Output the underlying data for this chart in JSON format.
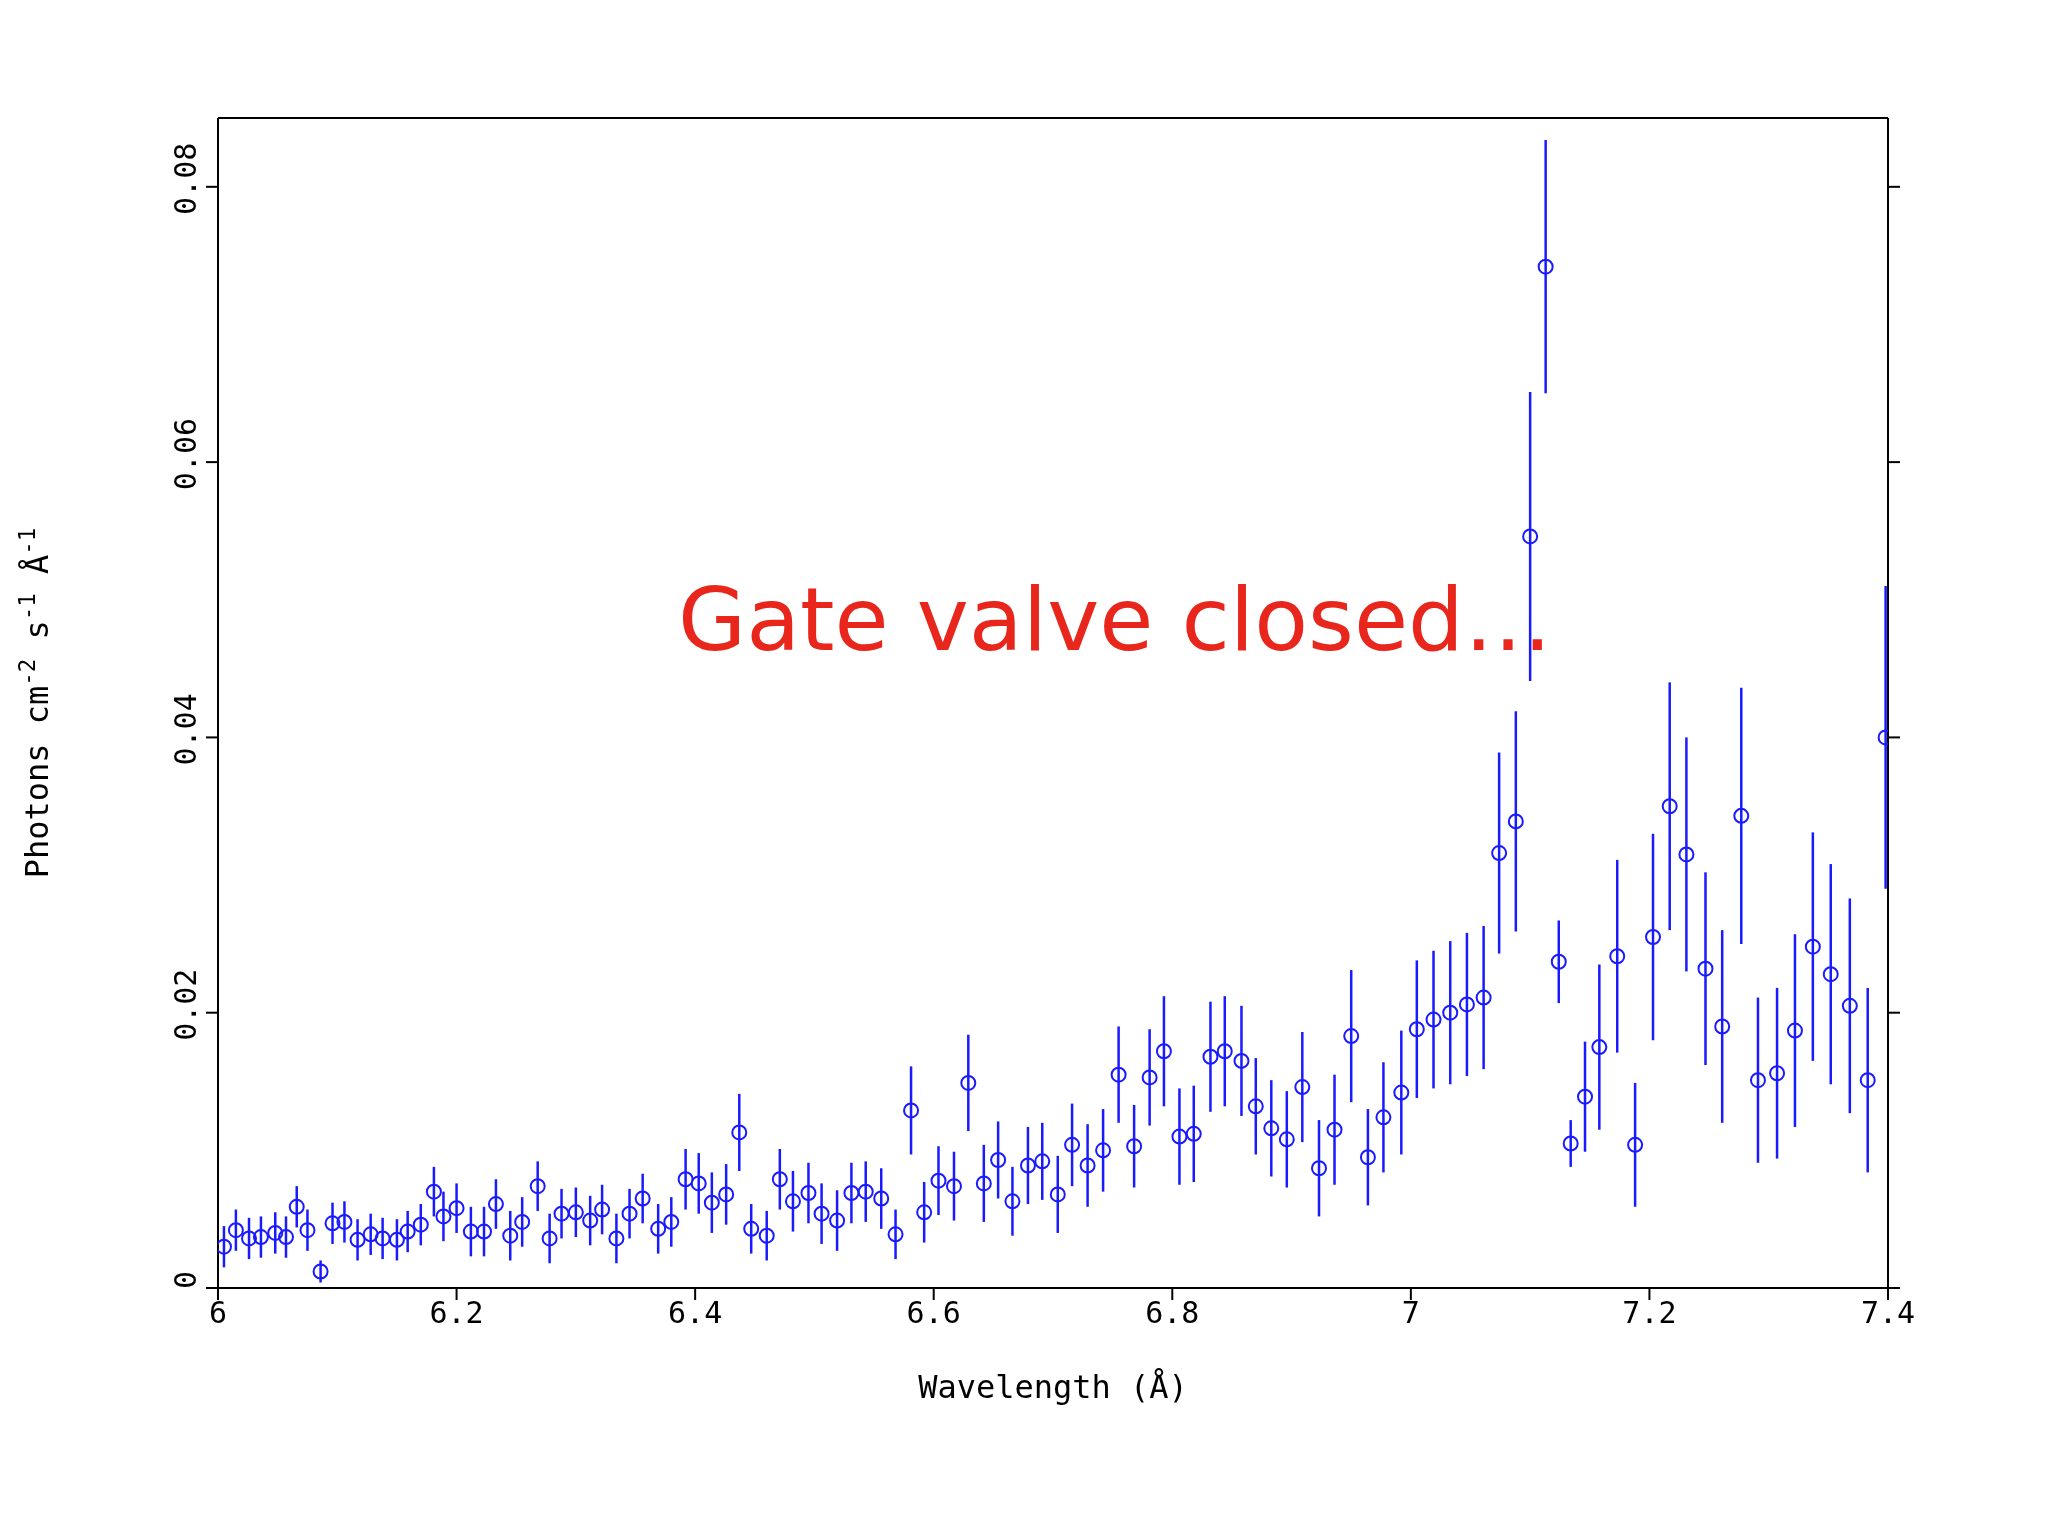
{
  "chart_data": {
    "type": "scatter",
    "xlabel": "Wavelength (Å)",
    "ylabel": "Photons cm$^{-2}$ s$^{-1}$ Å$^{-1}$",
    "annotations": [
      "Gate valve closed…"
    ],
    "xlim": [
      6,
      7.4
    ],
    "xticks": [
      6,
      6.2,
      6.4,
      6.6,
      6.8,
      7,
      7.2,
      7.4
    ],
    "ylim": [
      0,
      0.085
    ],
    "yticks": [
      0,
      0.02,
      0.04,
      0.06,
      0.08
    ],
    "grid": false,
    "marker": "circle",
    "legend": false,
    "series": [
      {
        "color": "#1a1aff",
        "x": [
          6.005,
          6.015,
          6.026,
          6.036,
          6.048,
          6.057,
          6.066,
          6.075,
          6.086,
          6.096,
          6.106,
          6.117,
          6.128,
          6.138,
          6.15,
          6.159,
          6.17,
          6.181,
          6.189,
          6.2,
          6.212,
          6.223,
          6.233,
          6.245,
          6.255,
          6.268,
          6.278,
          6.288,
          6.3,
          6.312,
          6.322,
          6.334,
          6.345,
          6.356,
          6.369,
          6.38,
          6.392,
          6.403,
          6.414,
          6.426,
          6.437,
          6.447,
          6.46,
          6.471,
          6.482,
          6.495,
          6.506,
          6.519,
          6.531,
          6.543,
          6.556,
          6.568,
          6.581,
          6.592,
          6.604,
          6.617,
          6.629,
          6.642,
          6.654,
          6.666,
          6.679,
          6.691,
          6.704,
          6.716,
          6.729,
          6.742,
          6.755,
          6.768,
          6.781,
          6.793,
          6.806,
          6.818,
          6.832,
          6.844,
          6.858,
          6.87,
          6.883,
          6.896,
          6.909,
          6.923,
          6.936,
          6.95,
          6.964,
          6.977,
          6.992,
          7.005,
          7.019,
          7.033,
          7.047,
          7.061,
          7.074,
          7.088,
          7.1,
          7.113,
          7.124,
          7.134,
          7.146,
          7.158,
          7.173,
          7.188,
          7.203,
          7.217,
          7.231,
          7.247,
          7.261,
          7.277,
          7.291,
          7.307,
          7.322,
          7.337,
          7.352,
          7.368,
          7.383,
          7.398
        ],
        "values": [
          0.003,
          0.0042,
          0.0036,
          0.0037,
          0.004,
          0.0037,
          0.0059,
          0.0042,
          0.0012,
          0.0047,
          0.0048,
          0.0035,
          0.0039,
          0.0036,
          0.0035,
          0.0041,
          0.0046,
          0.007,
          0.0052,
          0.0058,
          0.0041,
          0.0041,
          0.0061,
          0.0038,
          0.0048,
          0.0074,
          0.0036,
          0.0054,
          0.0055,
          0.0049,
          0.0057,
          0.0036,
          0.0054,
          0.0065,
          0.0043,
          0.0048,
          0.0079,
          0.0076,
          0.0062,
          0.0068,
          0.0113,
          0.0043,
          0.0038,
          0.0079,
          0.0063,
          0.0069,
          0.0054,
          0.0049,
          0.0069,
          0.007,
          0.0065,
          0.0039,
          0.0129,
          0.0055,
          0.0078,
          0.0074,
          0.0149,
          0.0076,
          0.0093,
          0.0063,
          0.0089,
          0.0092,
          0.0068,
          0.0104,
          0.0089,
          0.01,
          0.0155,
          0.0103,
          0.0153,
          0.0172,
          0.011,
          0.0112,
          0.0168,
          0.0172,
          0.0165,
          0.0132,
          0.0116,
          0.0108,
          0.0146,
          0.0087,
          0.0115,
          0.0183,
          0.0095,
          0.0124,
          0.0142,
          0.0188,
          0.0195,
          0.02,
          0.0206,
          0.0211,
          0.0316,
          0.0339,
          0.0546,
          0.0742,
          0.0237,
          0.0105,
          0.0139,
          0.0175,
          0.0241,
          0.0104,
          0.0255,
          0.035,
          0.0315,
          0.0232,
          0.019,
          0.0343,
          0.0151,
          0.0156,
          0.0187,
          0.0248,
          0.0228,
          0.0205,
          0.0151,
          0.04
        ],
        "errors": [
          0.0015,
          0.0015,
          0.0015,
          0.0015,
          0.0015,
          0.0015,
          0.0015,
          0.0015,
          0.0008,
          0.0015,
          0.0015,
          0.0015,
          0.0015,
          0.0015,
          0.0015,
          0.0015,
          0.0015,
          0.0018,
          0.0018,
          0.0018,
          0.0018,
          0.0018,
          0.0018,
          0.0018,
          0.0018,
          0.0018,
          0.0018,
          0.0018,
          0.0018,
          0.0018,
          0.0018,
          0.0018,
          0.0018,
          0.0018,
          0.0018,
          0.0018,
          0.0022,
          0.0022,
          0.0022,
          0.0022,
          0.0028,
          0.0018,
          0.0018,
          0.0022,
          0.0022,
          0.0022,
          0.0022,
          0.0022,
          0.0022,
          0.0022,
          0.0022,
          0.0018,
          0.0032,
          0.0022,
          0.0025,
          0.0025,
          0.0035,
          0.0028,
          0.0028,
          0.0025,
          0.0028,
          0.0028,
          0.0028,
          0.003,
          0.003,
          0.003,
          0.0035,
          0.003,
          0.0035,
          0.004,
          0.0035,
          0.0035,
          0.004,
          0.004,
          0.004,
          0.0035,
          0.0035,
          0.0035,
          0.004,
          0.0035,
          0.004,
          0.0048,
          0.0035,
          0.004,
          0.0045,
          0.005,
          0.005,
          0.0052,
          0.0052,
          0.0052,
          0.0073,
          0.008,
          0.0105,
          0.0092,
          0.003,
          0.0017,
          0.004,
          0.006,
          0.007,
          0.0045,
          0.0075,
          0.009,
          0.0085,
          0.007,
          0.007,
          0.0093,
          0.006,
          0.0062,
          0.007,
          0.0083,
          0.008,
          0.0078,
          0.0067,
          0.011
        ]
      }
    ]
  }
}
